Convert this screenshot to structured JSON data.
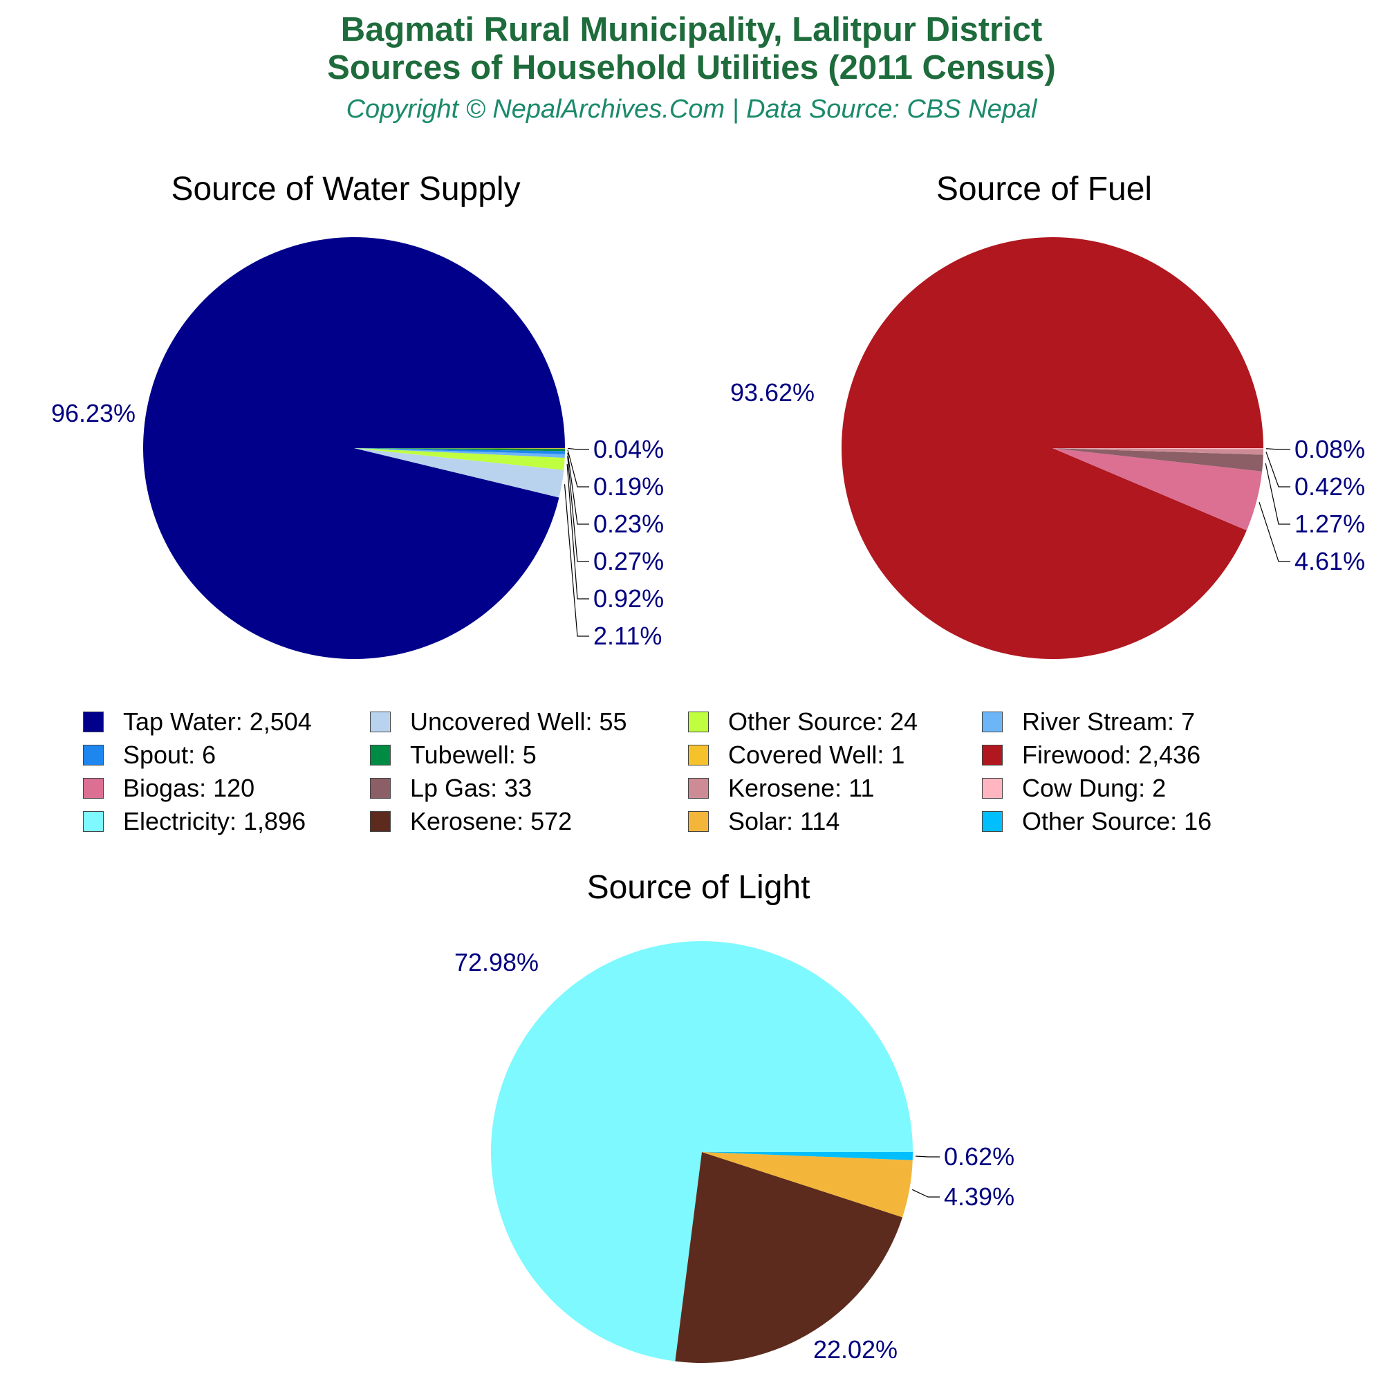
{
  "header": {
    "title_line1": "Bagmati Rural Municipality, Lalitpur District",
    "title_line2": "Sources of Household Utilities (2011 Census)",
    "subtitle": "Copyright © NepalArchives.Com | Data Source: CBS Nepal"
  },
  "chart_data": [
    {
      "type": "pie",
      "title": "Source of Water Supply",
      "slices": [
        {
          "name": "Tap Water",
          "value": 2504,
          "percent": 96.23,
          "label": "96.23%",
          "color": "#00008b"
        },
        {
          "name": "Uncovered Well",
          "value": 55,
          "percent": 2.11,
          "label": "2.11%",
          "color": "#b9d3ee"
        },
        {
          "name": "Other Source",
          "value": 24,
          "percent": 0.92,
          "label": "0.92%",
          "color": "#bfff3f"
        },
        {
          "name": "River Stream",
          "value": 7,
          "percent": 0.27,
          "label": "0.27%",
          "color": "#6cb5f7"
        },
        {
          "name": "Spout",
          "value": 6,
          "percent": 0.23,
          "label": "0.23%",
          "color": "#1e86ef"
        },
        {
          "name": "Tubewell",
          "value": 5,
          "percent": 0.19,
          "label": "0.19%",
          "color": "#008b45"
        },
        {
          "name": "Covered Well",
          "value": 1,
          "percent": 0.04,
          "label": "0.04%",
          "color": "#f5c22b"
        }
      ]
    },
    {
      "type": "pie",
      "title": "Source of Fuel",
      "slices": [
        {
          "name": "Firewood",
          "value": 2436,
          "percent": 93.62,
          "label": "93.62%",
          "color": "#b0171f"
        },
        {
          "name": "Biogas",
          "value": 120,
          "percent": 4.61,
          "label": "4.61%",
          "color": "#db7093"
        },
        {
          "name": "Lp Gas",
          "value": 33,
          "percent": 1.27,
          "label": "1.27%",
          "color": "#8b5f65"
        },
        {
          "name": "Kerosene",
          "value": 11,
          "percent": 0.42,
          "label": "0.42%",
          "color": "#cd8c95"
        },
        {
          "name": "Cow Dung",
          "value": 2,
          "percent": 0.08,
          "label": "0.08%",
          "color": "#ffb6c1"
        }
      ]
    },
    {
      "type": "pie",
      "title": "Source of Light",
      "slices": [
        {
          "name": "Electricity",
          "value": 1896,
          "percent": 72.98,
          "label": "72.98%",
          "color": "#7df9ff"
        },
        {
          "name": "Kerosene",
          "value": 572,
          "percent": 22.02,
          "label": "22.02%",
          "color": "#5c2b1e"
        },
        {
          "name": "Solar",
          "value": 114,
          "percent": 4.39,
          "label": "4.39%",
          "color": "#f4b63a"
        },
        {
          "name": "Other Source",
          "value": 16,
          "percent": 0.62,
          "label": "0.62%",
          "color": "#00bfff"
        }
      ]
    }
  ],
  "legend": [
    {
      "label": "Tap Water: 2,504",
      "color": "#00008b"
    },
    {
      "label": "Uncovered Well: 55",
      "color": "#b9d3ee"
    },
    {
      "label": "Other Source: 24",
      "color": "#bfff3f"
    },
    {
      "label": "River Stream: 7",
      "color": "#6cb5f7"
    },
    {
      "label": "Spout: 6",
      "color": "#1e86ef"
    },
    {
      "label": "Tubewell: 5",
      "color": "#008b45"
    },
    {
      "label": "Covered Well: 1",
      "color": "#f5c22b"
    },
    {
      "label": "Firewood: 2,436",
      "color": "#b0171f"
    },
    {
      "label": "Biogas: 120",
      "color": "#db7093"
    },
    {
      "label": "Lp Gas: 33",
      "color": "#8b5f65"
    },
    {
      "label": "Kerosene: 11",
      "color": "#cd8c95"
    },
    {
      "label": "Cow Dung: 2",
      "color": "#ffb6c1"
    },
    {
      "label": "Electricity: 1,896",
      "color": "#7df9ff"
    },
    {
      "label": "Kerosene: 572",
      "color": "#5c2b1e"
    },
    {
      "label": "Solar: 114",
      "color": "#f4b63a"
    },
    {
      "label": "Other Source: 16",
      "color": "#00bfff"
    }
  ]
}
